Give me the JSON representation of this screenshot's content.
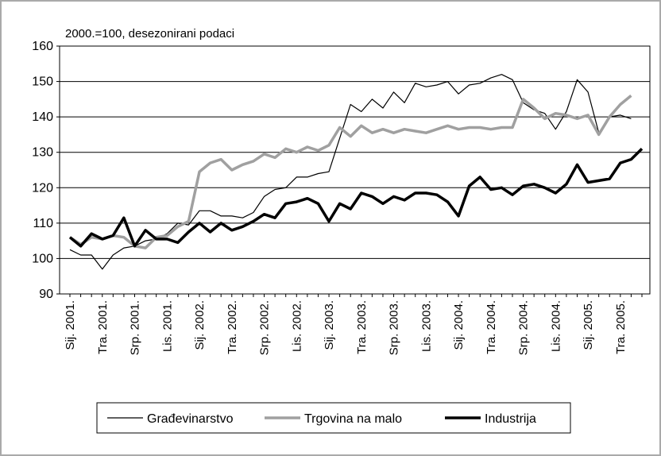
{
  "chart_data": {
    "type": "line",
    "subtitle": "2000.=100, desezonirani podaci",
    "categories": [
      "Sij. 2001.",
      null,
      null,
      "Tra. 2001.",
      null,
      null,
      "Srp. 2001.",
      null,
      null,
      "Lis. 2001.",
      null,
      null,
      "Sij. 2002.",
      null,
      null,
      "Tra. 2002.",
      null,
      null,
      "Srp. 2002.",
      null,
      null,
      "Lis. 2002.",
      null,
      null,
      "Sij. 2003.",
      null,
      null,
      "Tra. 2003.",
      null,
      null,
      "Srp. 2003.",
      null,
      null,
      "Lis. 2003.",
      null,
      null,
      "Sij. 2004.",
      null,
      null,
      "Tra. 2004.",
      null,
      null,
      "Srp. 2004.",
      null,
      null,
      "Lis. 2004.",
      null,
      null,
      "Sij. 2005.",
      null,
      null,
      "Tra. 2005.",
      null,
      null
    ],
    "series": [
      {
        "name": "Građevinarstvo",
        "color": "#000000",
        "width": 1.2,
        "values": [
          102.5,
          101,
          101,
          97,
          101,
          103,
          103.5,
          105,
          105.5,
          107,
          110,
          109.5,
          113.5,
          113.5,
          112,
          112,
          111.5,
          113,
          117.5,
          119.5,
          120,
          123,
          123,
          124,
          124.5,
          134,
          143.5,
          141.5,
          145,
          142.5,
          147,
          144,
          149.5,
          148.5,
          149,
          150,
          146.5,
          149,
          149.5,
          151,
          152,
          150.5,
          144,
          142,
          141,
          136.5,
          141.5,
          150.5,
          147,
          135.5,
          140,
          140.5,
          139.5,
          null
        ]
      },
      {
        "name": "Trgovina na malo",
        "color": "#a0a0a0",
        "width": 3.5,
        "values": [
          106,
          104,
          106,
          105.5,
          106.5,
          106,
          103.5,
          103,
          106,
          106.5,
          109,
          110.5,
          124.5,
          127,
          128,
          125,
          126.5,
          127.5,
          129.5,
          128.5,
          131,
          130,
          131.5,
          130.5,
          132,
          137,
          134.5,
          137.5,
          135.5,
          136.5,
          135.5,
          136.5,
          136,
          135.5,
          136.5,
          137.5,
          136.5,
          137,
          137,
          136.5,
          137,
          137,
          145,
          142.5,
          139.5,
          141,
          140.5,
          139.5,
          140.5,
          135,
          140,
          143.5,
          146,
          null
        ]
      },
      {
        "name": "Industrija",
        "color": "#000000",
        "width": 3.5,
        "values": [
          106,
          103.5,
          107,
          105.5,
          106.5,
          111.5,
          103.5,
          108,
          105.5,
          105.5,
          104.5,
          107.5,
          110,
          107.5,
          110,
          108,
          109,
          110.5,
          112.5,
          111.5,
          115.5,
          116,
          117,
          115.5,
          110.5,
          115.5,
          114,
          118.5,
          117.5,
          115.5,
          117.5,
          116.5,
          118.5,
          118.5,
          118,
          116,
          112,
          120.5,
          123,
          119.5,
          120,
          118,
          120.5,
          121,
          120,
          118.5,
          121,
          126.5,
          121.5,
          122,
          122.5,
          127,
          128,
          131
        ]
      }
    ],
    "ylim": [
      90,
      160
    ],
    "yticks": [
      90,
      100,
      110,
      120,
      130,
      140,
      150,
      160
    ],
    "grid": true,
    "legend": "bottom"
  }
}
